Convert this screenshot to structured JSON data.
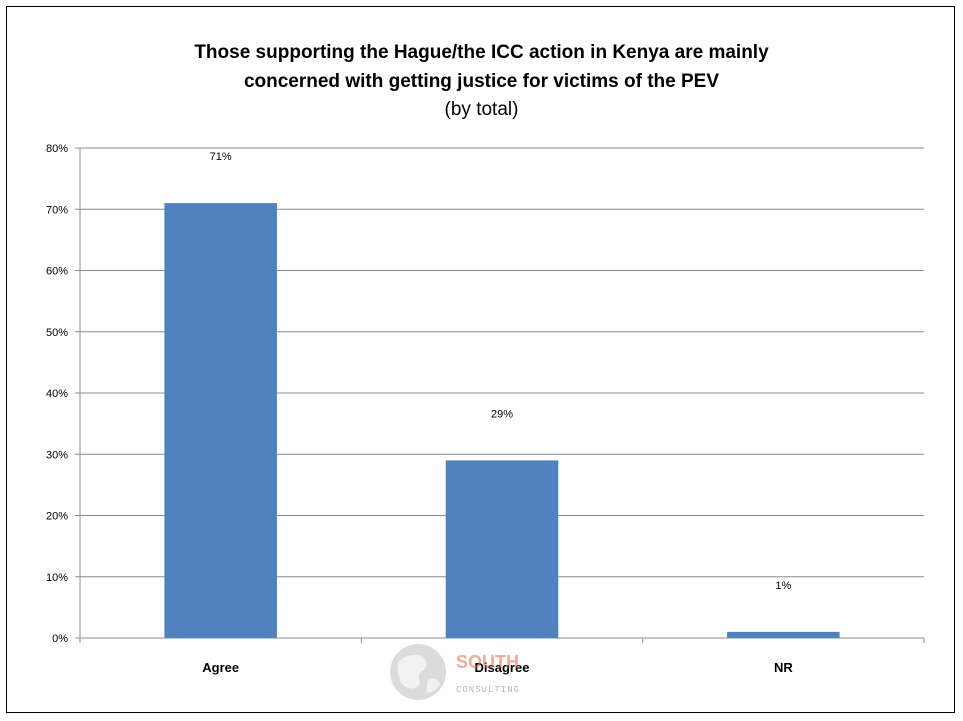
{
  "chart_data": {
    "type": "bar",
    "title_line1": "Those supporting the Hague/the ICC action in Kenya are mainly",
    "title_line2": "concerned with getting justice for victims of the PEV",
    "subtitle": "(by total)",
    "categories": [
      "Agree",
      "Disagree",
      "NR"
    ],
    "values": [
      71,
      29,
      1
    ],
    "data_labels": [
      "71%",
      "29%",
      "1%"
    ],
    "ylim": [
      0,
      80
    ],
    "y_ticks": [
      0,
      10,
      20,
      30,
      40,
      50,
      60,
      70,
      80
    ],
    "y_tick_format": "%",
    "grid": true,
    "legend": "none",
    "bar_color": "#4f81bd"
  },
  "watermark": {
    "text_main": "SOUTH",
    "text_sub": "CONSULTING",
    "globe": "globe-icon"
  }
}
